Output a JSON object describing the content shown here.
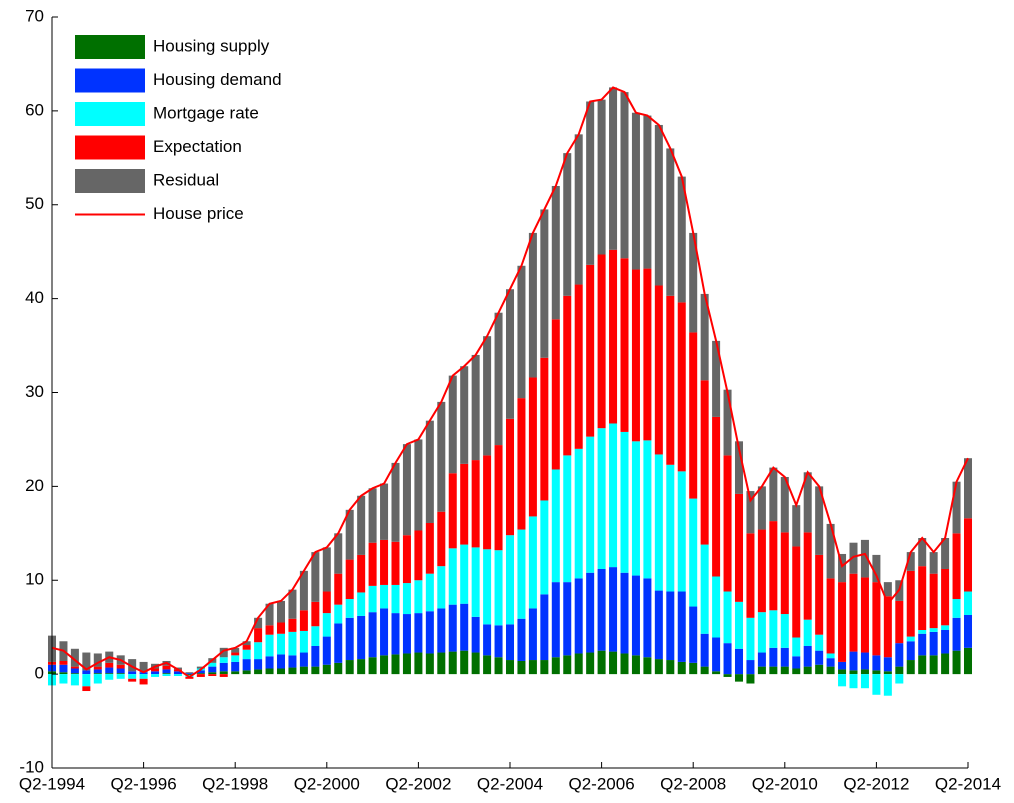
{
  "chart_data": {
    "type": "bar",
    "stacked": true,
    "categories": [
      "Q2-1994",
      null,
      null,
      null,
      null,
      null,
      null,
      null,
      "Q2-1996",
      null,
      null,
      null,
      null,
      null,
      null,
      null,
      "Q2-1998",
      null,
      null,
      null,
      null,
      null,
      null,
      null,
      "Q2-2000",
      null,
      null,
      null,
      null,
      null,
      null,
      null,
      "Q2-2002",
      null,
      null,
      null,
      null,
      null,
      null,
      null,
      "Q2-2004",
      null,
      null,
      null,
      null,
      null,
      null,
      null,
      "Q2-2006",
      null,
      null,
      null,
      null,
      null,
      null,
      null,
      "Q2-2008",
      null,
      null,
      null,
      null,
      null,
      null,
      null,
      "Q2-2010",
      null,
      null,
      null,
      null,
      null,
      null,
      null,
      "Q2-2012",
      null,
      null,
      null,
      null,
      null,
      null,
      null,
      "Q2-2014"
    ],
    "ylim": [
      -10,
      70
    ],
    "yticks": [
      -10,
      0,
      10,
      20,
      30,
      40,
      50,
      60,
      70
    ],
    "legend": "upper-left",
    "series": [
      {
        "name": "Housing supply",
        "color": "#007000",
        "values": [
          0.3,
          0.2,
          0.1,
          0.0,
          0.1,
          0.1,
          0.1,
          0.0,
          0.0,
          0.0,
          0.1,
          0.0,
          -0.1,
          0.1,
          0.2,
          0.3,
          0.3,
          0.4,
          0.5,
          0.6,
          0.6,
          0.7,
          0.8,
          0.8,
          1.0,
          1.2,
          1.5,
          1.6,
          1.8,
          2.0,
          2.1,
          2.2,
          2.3,
          2.2,
          2.3,
          2.4,
          2.5,
          2.3,
          2.0,
          1.8,
          1.5,
          1.4,
          1.5,
          1.5,
          1.8,
          2.0,
          2.2,
          2.3,
          2.5,
          2.4,
          2.2,
          2.0,
          1.8,
          1.6,
          1.5,
          1.3,
          1.2,
          0.8,
          0.3,
          -0.3,
          -0.8,
          -1.0,
          0.8,
          0.8,
          0.8,
          0.6,
          0.8,
          1.0,
          0.8,
          0.5,
          0.4,
          0.5,
          0.4,
          0.3,
          0.8,
          1.5,
          2.0,
          2.0,
          2.2,
          2.5,
          2.8
        ]
      },
      {
        "name": "Housing demand",
        "color": "#0033ff",
        "values": [
          0.7,
          0.8,
          0.5,
          0.4,
          0.4,
          0.6,
          0.5,
          0.3,
          0.2,
          0.3,
          0.4,
          0.3,
          0.1,
          0.3,
          0.6,
          0.9,
          1.0,
          1.2,
          1.1,
          1.3,
          1.5,
          1.3,
          1.5,
          2.2,
          3.0,
          4.2,
          4.5,
          4.6,
          4.8,
          5.0,
          4.4,
          4.2,
          4.2,
          4.5,
          4.7,
          5.0,
          5.0,
          3.8,
          3.3,
          3.4,
          3.8,
          4.5,
          5.5,
          7.0,
          8.0,
          7.8,
          8.0,
          8.5,
          8.7,
          9.0,
          8.6,
          8.5,
          8.4,
          7.3,
          7.3,
          7.5,
          6.0,
          3.5,
          3.6,
          3.3,
          2.7,
          1.5,
          1.5,
          2.0,
          2.0,
          1.3,
          2.2,
          1.5,
          0.9,
          0.8,
          2.0,
          1.8,
          1.6,
          1.5,
          2.5,
          2.0,
          2.3,
          2.5,
          2.5,
          3.5,
          3.5
        ]
      },
      {
        "name": "Mortgage rate",
        "color": "#00ffff",
        "values": [
          -1.2,
          -1.0,
          -1.2,
          -1.3,
          -1.0,
          -0.6,
          -0.5,
          -0.5,
          -0.5,
          -0.3,
          -0.2,
          -0.2,
          -0.2,
          0.2,
          0.4,
          0.6,
          0.7,
          1.0,
          1.8,
          2.3,
          2.2,
          2.5,
          2.3,
          2.1,
          2.5,
          2.0,
          2.0,
          2.5,
          2.8,
          2.5,
          3.0,
          3.3,
          3.5,
          4.0,
          4.5,
          6.0,
          6.3,
          7.4,
          8.0,
          8.0,
          9.5,
          9.5,
          9.8,
          10.0,
          12.0,
          13.5,
          13.8,
          14.5,
          15.0,
          15.3,
          15.0,
          14.3,
          14.7,
          14.5,
          13.5,
          12.8,
          11.5,
          9.5,
          6.5,
          5.5,
          5.0,
          4.5,
          4.3,
          4.0,
          3.6,
          2.0,
          2.8,
          1.7,
          0.5,
          -1.3,
          -1.5,
          -1.5,
          -2.2,
          -2.3,
          -1.0,
          0.5,
          0.4,
          0.4,
          0.5,
          2.0,
          2.5
        ]
      },
      {
        "name": "Expectation",
        "color": "#ff0000",
        "values": [
          0.3,
          0.4,
          0.2,
          -0.5,
          0.3,
          0.5,
          0.4,
          -0.3,
          -0.6,
          0.3,
          0.4,
          0.2,
          -0.2,
          -0.3,
          -0.2,
          -0.3,
          0.3,
          0.5,
          1.5,
          1.0,
          1.2,
          1.4,
          2.2,
          2.6,
          2.3,
          3.3,
          4.2,
          4.0,
          4.6,
          4.8,
          4.6,
          5.1,
          5.3,
          5.4,
          5.8,
          8.0,
          8.6,
          9.3,
          10.0,
          11.2,
          12.4,
          14.0,
          14.8,
          15.2,
          16.0,
          17.0,
          17.5,
          18.3,
          18.5,
          18.5,
          18.5,
          18.3,
          18.3,
          18.0,
          18.0,
          18.0,
          17.7,
          17.5,
          17.0,
          14.5,
          11.5,
          9.0,
          8.8,
          9.5,
          8.7,
          9.7,
          9.3,
          8.5,
          8.0,
          8.5,
          8.3,
          8.0,
          7.8,
          6.5,
          4.5,
          7.0,
          6.8,
          5.8,
          6.0,
          7.0,
          7.8
        ]
      },
      {
        "name": "Residual",
        "color": "#666666",
        "values": [
          2.8,
          2.1,
          1.9,
          1.9,
          1.4,
          1.2,
          1.0,
          1.3,
          1.1,
          0.5,
          0.5,
          0.2,
          0.1,
          0.2,
          0.5,
          1.0,
          0.5,
          0.4,
          1.1,
          2.3,
          2.3,
          3.1,
          4.2,
          5.3,
          4.7,
          4.3,
          5.3,
          6.3,
          5.8,
          6.0,
          8.4,
          9.7,
          9.7,
          10.9,
          11.7,
          10.4,
          10.4,
          11.2,
          12.7,
          14.1,
          13.8,
          14.1,
          15.4,
          15.8,
          14.2,
          15.2,
          16.0,
          17.4,
          16.5,
          17.3,
          17.7,
          16.7,
          16.3,
          17.1,
          15.7,
          13.4,
          10.6,
          9.2,
          8.1,
          7.0,
          5.6,
          4.5,
          4.6,
          5.7,
          5.9,
          4.4,
          6.4,
          7.3,
          5.8,
          3.0,
          3.3,
          4.0,
          2.9,
          1.5,
          2.2,
          2.0,
          3.0,
          2.3,
          3.3,
          5.5,
          6.4
        ]
      },
      {
        "name": "House price",
        "color": "#ff0000",
        "type": "line",
        "values": [
          2.8,
          2.5,
          1.5,
          0.5,
          1.2,
          1.8,
          1.5,
          0.8,
          0.2,
          0.8,
          1.2,
          0.5,
          -0.3,
          0.5,
          1.5,
          2.5,
          2.8,
          3.5,
          6.0,
          7.5,
          7.8,
          9.0,
          11.0,
          13.0,
          13.5,
          15.0,
          17.5,
          19.0,
          19.8,
          20.3,
          22.5,
          24.5,
          25.0,
          27.0,
          29.0,
          31.8,
          32.8,
          34.0,
          36.0,
          38.5,
          41,
          43.5,
          47,
          49.5,
          52,
          55.5,
          57.5,
          61,
          61.2,
          62.5,
          62,
          59.8,
          59.5,
          58.5,
          56,
          53,
          47,
          40.5,
          35.5,
          30,
          24,
          18.5,
          20,
          22,
          21,
          18,
          21.5,
          20,
          16,
          11.5,
          12.5,
          12.8,
          10.5,
          7.5,
          9,
          13,
          14.5,
          13,
          14.5,
          20.5,
          23
        ]
      }
    ]
  }
}
